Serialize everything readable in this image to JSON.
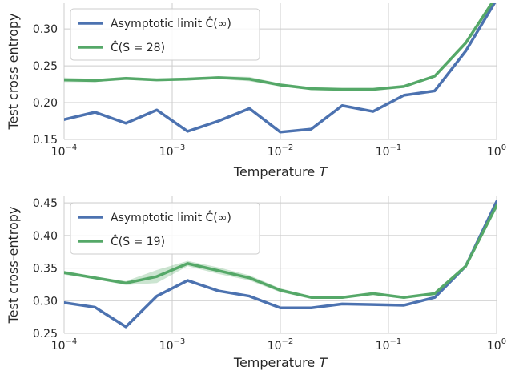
{
  "chart_data": [
    {
      "type": "line",
      "xlabel": "Temperature T",
      "ylabel": "Test cross entropy",
      "xscale": "log",
      "xlim": [
        0.0001,
        1
      ],
      "ylim": [
        0.15,
        0.335
      ],
      "xtick_labels": [
        "10^-4",
        "10^-3",
        "10^-2",
        "10^-1",
        "10^0"
      ],
      "yticks": [
        0.15,
        0.2,
        0.25,
        0.3
      ],
      "ytick_labels": [
        "0.15",
        "0.20",
        "0.25",
        "0.30"
      ],
      "grid": true,
      "legend_position": "top-left",
      "x": [
        0.0001,
        0.000193,
        0.000373,
        0.00072,
        0.00139,
        0.00268,
        0.00518,
        0.01,
        0.0193,
        0.0373,
        0.072,
        0.139,
        0.268,
        0.518,
        1.0
      ],
      "series": [
        {
          "name": "Asymptotic limit Ĉ(∞)",
          "color": "#4c72b0",
          "values": [
            0.177,
            0.187,
            0.172,
            0.19,
            0.161,
            0.175,
            0.192,
            0.16,
            0.164,
            0.196,
            0.188,
            0.21,
            0.216,
            0.27,
            0.34
          ]
        },
        {
          "name": "Ĉ(S = 28)",
          "color": "#55a868",
          "values": [
            0.231,
            0.23,
            0.233,
            0.231,
            0.232,
            0.234,
            0.232,
            0.224,
            0.219,
            0.218,
            0.218,
            0.222,
            0.236,
            0.281,
            0.345
          ],
          "band_halfwidth": [
            0.003,
            0.002,
            0.002,
            0.002,
            0.002,
            0.002,
            0.003,
            0.002,
            0.002,
            0.002,
            0.002,
            0.002,
            0.002,
            0.002,
            0.002
          ]
        }
      ]
    },
    {
      "type": "line",
      "xlabel": "Temperature T",
      "ylabel": "Test cross-entropy",
      "xscale": "log",
      "xlim": [
        0.0001,
        1
      ],
      "ylim": [
        0.25,
        0.46
      ],
      "xtick_labels": [
        "10^-4",
        "10^-3",
        "10^-2",
        "10^-1",
        "10^0"
      ],
      "yticks": [
        0.25,
        0.3,
        0.35,
        0.4,
        0.45
      ],
      "ytick_labels": [
        "0.25",
        "0.30",
        "0.35",
        "0.40",
        "0.45"
      ],
      "grid": true,
      "legend_position": "top-left",
      "x": [
        0.0001,
        0.000193,
        0.000373,
        0.00072,
        0.00139,
        0.00268,
        0.00518,
        0.01,
        0.0193,
        0.0373,
        0.072,
        0.139,
        0.268,
        0.518,
        1.0
      ],
      "series": [
        {
          "name": "Asymptotic limit Ĉ(∞)",
          "color": "#4c72b0",
          "values": [
            0.297,
            0.29,
            0.26,
            0.307,
            0.331,
            0.315,
            0.307,
            0.289,
            0.289,
            0.295,
            0.294,
            0.293,
            0.305,
            0.353,
            0.452
          ]
        },
        {
          "name": "Ĉ(S = 19)",
          "color": "#55a868",
          "values": [
            0.343,
            0.335,
            0.327,
            0.337,
            0.357,
            0.346,
            0.335,
            0.316,
            0.305,
            0.305,
            0.311,
            0.305,
            0.311,
            0.353,
            0.446
          ],
          "band_halfwidth": [
            0.003,
            0.002,
            0.003,
            0.01,
            0.004,
            0.005,
            0.004,
            0.003,
            0.002,
            0.002,
            0.002,
            0.002,
            0.002,
            0.002,
            0.002
          ]
        }
      ]
    }
  ]
}
